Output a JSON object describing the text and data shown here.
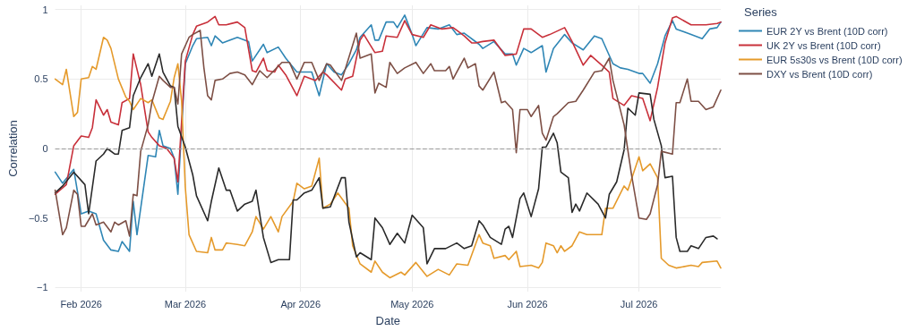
{
  "chart_data": {
    "type": "line",
    "xlabel": "Date",
    "ylabel": "Correlation",
    "legend_title": "Series",
    "legend": "top right",
    "grid": true,
    "marker": "none",
    "line_style": "solid",
    "xlim": [
      "2026-01-25",
      "2026-07-23"
    ],
    "xticks": [
      {
        "value": "2026-02-01",
        "label": "Feb 2026"
      },
      {
        "value": "2026-03-01",
        "label": "Mar 2026"
      },
      {
        "value": "2026-04-01",
        "label": "Apr 2026"
      },
      {
        "value": "2026-05-01",
        "label": "May 2026"
      },
      {
        "value": "2026-06-01",
        "label": "Jun 2026"
      },
      {
        "value": "2026-07-01",
        "label": "Jul 2026"
      }
    ],
    "ylim": [
      -1.03,
      1.03
    ],
    "yticks": [
      {
        "value": -1,
        "label": "−1"
      },
      {
        "value": -0.5,
        "label": "−0.5"
      },
      0,
      0.5,
      1
    ],
    "ref_lines": [
      {
        "axis": "y",
        "value": 0,
        "color": "#999999",
        "line_style": "dashed"
      }
    ],
    "series": [
      {
        "name": "EUR 2Y vs Brent (10D corr)",
        "color": "#2f86b5",
        "x": [
          "2026-01-25",
          "2026-01-27",
          "2026-01-30",
          "2026-02-01",
          "2026-02-03",
          "2026-02-05",
          "2026-02-07",
          "2026-02-09",
          "2026-02-11",
          "2026-02-12",
          "2026-02-14",
          "2026-02-15",
          "2026-02-16",
          "2026-02-18",
          "2026-02-19",
          "2026-02-21",
          "2026-02-22",
          "2026-02-23",
          "2026-02-25",
          "2026-02-26",
          "2026-02-27",
          "2026-03-01",
          "2026-03-03",
          "2026-03-04",
          "2026-03-07",
          "2026-03-08",
          "2026-03-09",
          "2026-03-11",
          "2026-03-15",
          "2026-03-18",
          "2026-03-19",
          "2026-03-22",
          "2026-03-23",
          "2026-03-26",
          "2026-03-28",
          "2026-03-31",
          "2026-04-04",
          "2026-04-06",
          "2026-04-08",
          "2026-04-10",
          "2026-04-12",
          "2026-04-14",
          "2026-04-16",
          "2026-04-17",
          "2026-04-20",
          "2026-04-21",
          "2026-04-22",
          "2026-04-24",
          "2026-04-26",
          "2026-04-27",
          "2026-04-29",
          "2026-05-01",
          "2026-05-02",
          "2026-05-05",
          "2026-05-08",
          "2026-05-11",
          "2026-05-13",
          "2026-05-15",
          "2026-05-19",
          "2026-05-20",
          "2026-05-23",
          "2026-05-26",
          "2026-05-28",
          "2026-05-29",
          "2026-05-31",
          "2026-06-02",
          "2026-06-05",
          "2026-06-06",
          "2026-06-08",
          "2026-06-11",
          "2026-06-13",
          "2026-06-16",
          "2026-06-19",
          "2026-06-21",
          "2026-06-24",
          "2026-06-26",
          "2026-06-28",
          "2026-07-01",
          "2026-07-02",
          "2026-07-04",
          "2026-07-06",
          "2026-07-08",
          "2026-07-10",
          "2026-07-11",
          "2026-07-15",
          "2026-07-18",
          "2026-07-20",
          "2026-07-22",
          "2026-07-23"
        ],
        "values": [
          -0.17,
          -0.25,
          -0.15,
          -0.47,
          -0.45,
          -0.47,
          -0.66,
          -0.73,
          -0.74,
          -0.67,
          -0.74,
          -0.38,
          -0.62,
          -0.24,
          -0.05,
          -0.06,
          0.13,
          0.02,
          0.0,
          -0.07,
          -0.33,
          0.61,
          0.74,
          0.79,
          0.8,
          0.74,
          0.81,
          0.76,
          0.8,
          0.77,
          0.63,
          0.75,
          0.69,
          0.73,
          0.65,
          0.55,
          0.55,
          0.38,
          0.61,
          0.55,
          0.53,
          0.61,
          0.71,
          0.8,
          0.89,
          0.78,
          0.78,
          0.91,
          0.91,
          0.87,
          0.96,
          0.82,
          0.74,
          0.87,
          0.86,
          0.89,
          0.82,
          0.83,
          0.75,
          0.72,
          0.77,
          0.68,
          0.68,
          0.6,
          0.72,
          0.69,
          0.74,
          0.55,
          0.72,
          0.82,
          0.76,
          0.71,
          0.81,
          0.79,
          0.61,
          0.58,
          0.57,
          0.54,
          0.54,
          0.47,
          0.61,
          0.81,
          0.92,
          0.86,
          0.82,
          0.79,
          0.86,
          0.87,
          0.91
        ]
      },
      {
        "name": "UK 2Y vs Brent (10D corr)",
        "color": "#c8303a",
        "x": [
          "2026-01-25",
          "2026-01-28",
          "2026-01-30",
          "2026-02-01",
          "2026-02-03",
          "2026-02-04",
          "2026-02-05",
          "2026-02-07",
          "2026-02-08",
          "2026-02-09",
          "2026-02-11",
          "2026-02-12",
          "2026-02-14",
          "2026-02-15",
          "2026-02-17",
          "2026-02-19",
          "2026-02-20",
          "2026-02-22",
          "2026-02-24",
          "2026-02-26",
          "2026-02-27",
          "2026-03-01",
          "2026-03-03",
          "2026-03-04",
          "2026-03-07",
          "2026-03-09",
          "2026-03-10",
          "2026-03-12",
          "2026-03-15",
          "2026-03-17",
          "2026-03-19",
          "2026-03-20",
          "2026-03-22",
          "2026-03-23",
          "2026-03-25",
          "2026-03-26",
          "2026-03-28",
          "2026-03-31",
          "2026-04-02",
          "2026-04-05",
          "2026-04-07",
          "2026-04-08",
          "2026-04-12",
          "2026-04-13",
          "2026-04-15",
          "2026-04-17",
          "2026-04-18",
          "2026-04-21",
          "2026-04-23",
          "2026-04-24",
          "2026-04-27",
          "2026-04-29",
          "2026-05-01",
          "2026-05-04",
          "2026-05-06",
          "2026-05-09",
          "2026-05-12",
          "2026-05-15",
          "2026-05-17",
          "2026-05-18",
          "2026-05-20",
          "2026-05-23",
          "2026-05-26",
          "2026-05-29",
          "2026-05-31",
          "2026-06-02",
          "2026-06-05",
          "2026-06-07",
          "2026-06-11",
          "2026-06-13",
          "2026-06-16",
          "2026-06-18",
          "2026-06-21",
          "2026-06-23",
          "2026-06-24",
          "2026-06-27",
          "2026-06-29",
          "2026-07-02",
          "2026-07-04",
          "2026-07-06",
          "2026-07-08",
          "2026-07-10",
          "2026-07-11",
          "2026-07-15",
          "2026-07-19",
          "2026-07-22",
          "2026-07-23"
        ],
        "values": [
          -0.33,
          -0.26,
          0.02,
          0.09,
          0.08,
          0.15,
          0.35,
          0.24,
          0.28,
          0.19,
          0.17,
          0.33,
          0.36,
          0.68,
          0.46,
          0.12,
          0.08,
          0.02,
          0.0,
          -0.07,
          -0.24,
          0.63,
          0.82,
          0.88,
          0.91,
          0.95,
          0.89,
          0.89,
          0.91,
          0.87,
          0.56,
          0.55,
          0.65,
          0.56,
          0.55,
          0.6,
          0.53,
          0.38,
          0.52,
          0.49,
          0.55,
          0.53,
          0.42,
          0.5,
          0.52,
          0.78,
          0.82,
          0.69,
          0.7,
          0.81,
          0.8,
          0.92,
          0.82,
          0.8,
          0.89,
          0.86,
          0.87,
          0.81,
          0.76,
          0.76,
          0.77,
          0.78,
          0.67,
          0.68,
          0.86,
          0.86,
          0.8,
          0.82,
          0.87,
          0.77,
          0.6,
          0.67,
          0.6,
          0.55,
          0.36,
          0.31,
          0.38,
          0.36,
          0.2,
          0.44,
          0.76,
          0.94,
          0.95,
          0.89,
          0.89,
          0.9,
          0.91
        ]
      },
      {
        "name": "EUR 5s30s vs Brent (10D corr)",
        "color": "#e59a2b",
        "x": [
          "2026-01-25",
          "2026-01-27",
          "2026-01-28",
          "2026-01-30",
          "2026-01-31",
          "2026-02-01",
          "2026-02-03",
          "2026-02-04",
          "2026-02-05",
          "2026-02-07",
          "2026-02-08",
          "2026-02-09",
          "2026-02-11",
          "2026-02-13",
          "2026-02-14",
          "2026-02-15",
          "2026-02-17",
          "2026-02-19",
          "2026-02-20",
          "2026-02-22",
          "2026-02-23",
          "2026-02-25",
          "2026-02-26",
          "2026-02-27",
          "2026-02-28",
          "2026-03-01",
          "2026-03-02",
          "2026-03-04",
          "2026-03-07",
          "2026-03-08",
          "2026-03-09",
          "2026-03-11",
          "2026-03-12",
          "2026-03-15",
          "2026-03-17",
          "2026-03-19",
          "2026-03-20",
          "2026-03-22",
          "2026-03-24",
          "2026-03-26",
          "2026-03-27",
          "2026-03-30",
          "2026-03-31",
          "2026-04-02",
          "2026-04-04",
          "2026-04-06",
          "2026-04-07",
          "2026-04-09",
          "2026-04-11",
          "2026-04-14",
          "2026-04-15",
          "2026-04-17",
          "2026-04-20",
          "2026-04-21",
          "2026-04-23",
          "2026-04-25",
          "2026-04-28",
          "2026-04-29",
          "2026-05-02",
          "2026-05-05",
          "2026-05-08",
          "2026-05-11",
          "2026-05-13",
          "2026-05-16",
          "2026-05-19",
          "2026-05-20",
          "2026-05-22",
          "2026-05-23",
          "2026-05-26",
          "2026-05-27",
          "2026-05-29",
          "2026-05-30",
          "2026-06-02",
          "2026-06-04",
          "2026-06-05",
          "2026-06-06",
          "2026-06-08",
          "2026-06-09",
          "2026-06-10",
          "2026-06-11",
          "2026-06-13",
          "2026-06-15",
          "2026-06-17",
          "2026-06-21",
          "2026-06-22",
          "2026-06-24",
          "2026-06-27",
          "2026-06-28",
          "2026-07-01",
          "2026-07-02",
          "2026-07-04",
          "2026-07-06",
          "2026-07-07",
          "2026-07-09",
          "2026-07-11",
          "2026-07-15",
          "2026-07-17",
          "2026-07-18",
          "2026-07-22",
          "2026-07-23"
        ],
        "values": [
          0.5,
          0.46,
          0.57,
          0.23,
          0.26,
          0.5,
          0.51,
          0.59,
          0.57,
          0.8,
          0.78,
          0.72,
          0.5,
          0.37,
          0.34,
          0.28,
          0.36,
          0.33,
          0.35,
          0.22,
          0.21,
          0.34,
          0.51,
          0.61,
          0.34,
          -0.28,
          -0.62,
          -0.74,
          -0.75,
          -0.64,
          -0.73,
          -0.73,
          -0.68,
          -0.69,
          -0.7,
          -0.6,
          -0.49,
          -0.58,
          -0.49,
          -0.6,
          -0.49,
          -0.38,
          -0.25,
          -0.29,
          -0.27,
          -0.07,
          -0.43,
          -0.4,
          -0.32,
          -0.43,
          -0.7,
          -0.83,
          -0.89,
          -0.81,
          -0.89,
          -0.93,
          -0.89,
          -0.91,
          -0.82,
          -0.92,
          -0.87,
          -0.91,
          -0.83,
          -0.84,
          -0.62,
          -0.68,
          -0.7,
          -0.79,
          -0.77,
          -0.8,
          -0.74,
          -0.85,
          -0.84,
          -0.86,
          -0.82,
          -0.68,
          -0.7,
          -0.75,
          -0.7,
          -0.74,
          -0.7,
          -0.6,
          -0.62,
          -0.62,
          -0.43,
          -0.43,
          -0.27,
          -0.3,
          -0.06,
          -0.16,
          -0.11,
          -0.21,
          -0.79,
          -0.84,
          -0.86,
          -0.84,
          -0.85,
          -0.82,
          -0.81,
          -0.86
        ]
      },
      {
        "color": "#2a2a2a",
        "x": [
          "2026-01-25",
          "2026-01-27",
          "2026-01-30",
          "2026-02-02",
          "2026-02-03",
          "2026-02-05",
          "2026-02-07",
          "2026-02-08",
          "2026-02-10",
          "2026-02-11",
          "2026-02-12",
          "2026-02-14",
          "2026-02-15",
          "2026-02-17",
          "2026-02-19",
          "2026-02-20",
          "2026-02-22",
          "2026-02-23",
          "2026-02-25",
          "2026-02-26",
          "2026-02-27",
          "2026-03-01",
          "2026-03-03",
          "2026-03-04",
          "2026-03-07",
          "2026-03-08",
          "2026-03-10",
          "2026-03-12",
          "2026-03-13",
          "2026-03-15",
          "2026-03-17",
          "2026-03-19",
          "2026-03-20",
          "2026-03-22",
          "2026-03-24",
          "2026-03-26",
          "2026-03-29",
          "2026-03-30",
          "2026-03-31",
          "2026-04-02",
          "2026-04-04",
          "2026-04-06",
          "2026-04-07",
          "2026-04-09",
          "2026-04-12",
          "2026-04-13",
          "2026-04-14",
          "2026-04-16",
          "2026-04-17",
          "2026-04-20",
          "2026-04-21",
          "2026-04-23",
          "2026-04-25",
          "2026-04-27",
          "2026-04-29",
          "2026-05-01",
          "2026-05-04",
          "2026-05-05",
          "2026-05-07",
          "2026-05-10",
          "2026-05-13",
          "2026-05-15",
          "2026-05-17",
          "2026-05-19",
          "2026-05-20",
          "2026-05-22",
          "2026-05-25",
          "2026-05-26",
          "2026-05-27",
          "2026-05-28",
          "2026-05-30",
          "2026-05-31",
          "2026-06-02",
          "2026-06-04",
          "2026-06-05",
          "2026-06-06",
          "2026-06-08",
          "2026-06-09",
          "2026-06-10",
          "2026-06-12",
          "2026-06-13",
          "2026-06-14",
          "2026-06-15",
          "2026-06-17",
          "2026-06-20",
          "2026-06-22",
          "2026-06-23",
          "2026-06-25",
          "2026-06-27",
          "2026-06-28",
          "2026-06-30",
          "2026-07-01",
          "2026-07-04",
          "2026-07-05",
          "2026-07-07",
          "2026-07-08",
          "2026-07-10",
          "2026-07-11",
          "2026-07-12",
          "2026-07-14",
          "2026-07-15",
          "2026-07-17",
          "2026-07-19",
          "2026-07-21",
          "2026-07-22"
        ],
        "values": [
          -0.32,
          -0.27,
          -0.17,
          -0.26,
          -0.47,
          -0.09,
          -0.04,
          0.0,
          -0.04,
          -0.04,
          0.13,
          0.15,
          0.38,
          0.51,
          0.61,
          0.52,
          0.68,
          0.55,
          0.45,
          0.44,
          0.16,
          0.01,
          -0.19,
          -0.34,
          -0.52,
          -0.38,
          -0.14,
          -0.3,
          -0.3,
          -0.45,
          -0.4,
          -0.38,
          -0.3,
          -0.64,
          -0.82,
          -0.8,
          -0.8,
          -0.37,
          -0.37,
          -0.32,
          -0.3,
          -0.21,
          -0.43,
          -0.42,
          -0.21,
          -0.21,
          -0.53,
          -0.78,
          -0.75,
          -0.8,
          -0.5,
          -0.57,
          -0.69,
          -0.61,
          -0.68,
          -0.48,
          -0.57,
          -0.83,
          -0.72,
          -0.72,
          -0.68,
          -0.72,
          -0.7,
          -0.52,
          -0.55,
          -0.64,
          -0.69,
          -0.58,
          -0.56,
          -0.64,
          -0.36,
          -0.32,
          -0.49,
          -0.29,
          0.01,
          0.01,
          0.11,
          0.04,
          -0.17,
          -0.21,
          -0.46,
          -0.4,
          -0.45,
          -0.32,
          -0.4,
          -0.5,
          -0.33,
          -0.24,
          -0.01,
          0.29,
          0.24,
          0.4,
          0.39,
          0.21,
          0.02,
          -0.21,
          -0.2,
          -0.64,
          -0.74,
          -0.74,
          -0.7,
          -0.72,
          -0.64,
          -0.63,
          -0.65
        ]
      },
      {
        "name": "DXY vs Brent (10D corr)",
        "color": "#7d4f45",
        "x": [
          "2026-01-25",
          "2026-01-27",
          "2026-01-28",
          "2026-01-30",
          "2026-01-31",
          "2026-02-01",
          "2026-02-02",
          "2026-02-04",
          "2026-02-05",
          "2026-02-07",
          "2026-02-09",
          "2026-02-10",
          "2026-02-11",
          "2026-02-13",
          "2026-02-14",
          "2026-02-15",
          "2026-02-16",
          "2026-02-17",
          "2026-02-19",
          "2026-02-20",
          "2026-02-22",
          "2026-02-23",
          "2026-02-25",
          "2026-02-26",
          "2026-02-27",
          "2026-02-28",
          "2026-03-02",
          "2026-03-03",
          "2026-03-05",
          "2026-03-06",
          "2026-03-07",
          "2026-03-08",
          "2026-03-09",
          "2026-03-11",
          "2026-03-13",
          "2026-03-15",
          "2026-03-17",
          "2026-03-19",
          "2026-03-21",
          "2026-03-23",
          "2026-03-27",
          "2026-03-29",
          "2026-03-31",
          "2026-04-02",
          "2026-04-04",
          "2026-04-06",
          "2026-04-08",
          "2026-04-09",
          "2026-04-12",
          "2026-04-13",
          "2026-04-16",
          "2026-04-17",
          "2026-04-20",
          "2026-04-21",
          "2026-04-22",
          "2026-04-24",
          "2026-04-25",
          "2026-04-27",
          "2026-04-29",
          "2026-05-02",
          "2026-05-04",
          "2026-05-06",
          "2026-05-07",
          "2026-05-10",
          "2026-05-11",
          "2026-05-12",
          "2026-05-15",
          "2026-05-16",
          "2026-05-18",
          "2026-05-19",
          "2026-05-20",
          "2026-05-23",
          "2026-05-25",
          "2026-05-26",
          "2026-05-28",
          "2026-05-29",
          "2026-05-30",
          "2026-06-01",
          "2026-06-02",
          "2026-06-04",
          "2026-06-05",
          "2026-06-06",
          "2026-06-08",
          "2026-06-09",
          "2026-06-12",
          "2026-06-14",
          "2026-06-16",
          "2026-06-19",
          "2026-06-21",
          "2026-06-23",
          "2026-06-24",
          "2026-06-27",
          "2026-06-29",
          "2026-07-01",
          "2026-07-03",
          "2026-07-04",
          "2026-07-06",
          "2026-07-07",
          "2026-07-10",
          "2026-07-11",
          "2026-07-12",
          "2026-07-14",
          "2026-07-15",
          "2026-07-17",
          "2026-07-19",
          "2026-07-21",
          "2026-07-23"
        ],
        "values": [
          -0.3,
          -0.62,
          -0.57,
          -0.3,
          -0.33,
          -0.56,
          -0.56,
          -0.47,
          -0.55,
          -0.53,
          -0.6,
          -0.53,
          -0.55,
          -0.52,
          -0.63,
          -0.33,
          -0.34,
          -0.02,
          0.17,
          0.33,
          0.52,
          0.49,
          0.44,
          0.44,
          0.32,
          0.68,
          0.8,
          0.82,
          0.85,
          0.58,
          0.38,
          0.35,
          0.49,
          0.5,
          0.54,
          0.55,
          0.53,
          0.46,
          0.56,
          0.51,
          0.62,
          0.62,
          0.5,
          0.62,
          0.62,
          0.49,
          0.61,
          0.6,
          0.49,
          0.57,
          0.83,
          0.65,
          0.68,
          0.4,
          0.47,
          0.44,
          0.62,
          0.54,
          0.58,
          0.62,
          0.54,
          0.61,
          0.56,
          0.56,
          0.59,
          0.5,
          0.65,
          0.58,
          0.61,
          0.45,
          0.42,
          0.55,
          0.33,
          0.34,
          0.28,
          -0.03,
          0.28,
          0.28,
          0.23,
          0.31,
          0.11,
          0.06,
          0.23,
          0.25,
          0.33,
          0.34,
          0.42,
          0.55,
          0.56,
          0.65,
          0.49,
          0.17,
          -0.19,
          -0.5,
          -0.51,
          -0.47,
          -0.26,
          -0.02,
          -0.04,
          0.33,
          0.33,
          0.5,
          0.34,
          0.34,
          0.28,
          0.3,
          0.42
        ]
      }
    ]
  }
}
